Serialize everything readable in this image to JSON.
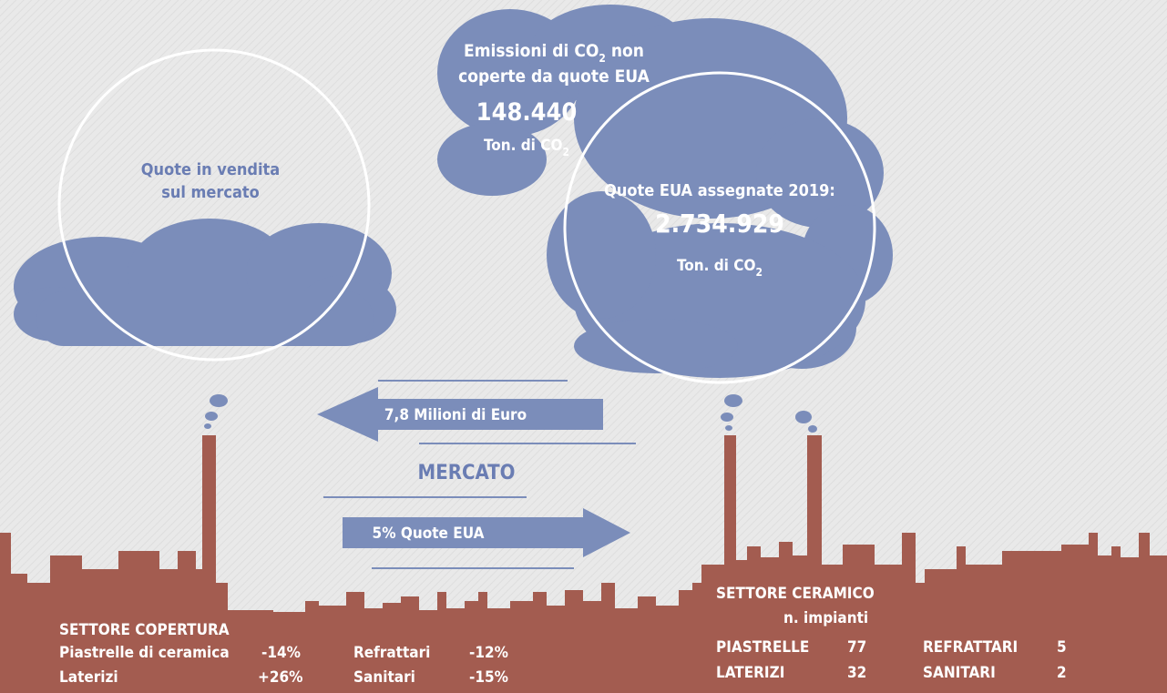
{
  "market_cloud": {
    "line1": "Quote in vendita",
    "line2": "sul mercato"
  },
  "emissions_cloud": {
    "line1": [
      "Emissioni di  CO",
      "2",
      " non"
    ],
    "line2": "coperte da quote EUA",
    "value": "148.440",
    "unit": [
      "Ton. di CO",
      "2"
    ]
  },
  "allowances_circle": {
    "line1": "Quote EUA  assegnate 2019:",
    "value": "2.734.929",
    "unit": [
      "Ton. di CO",
      "2"
    ]
  },
  "arrow_money": "7,8 Milioni di Euro",
  "market_label": "MERCATO",
  "arrow_quota": "5% Quote EUA",
  "coverage_sector": {
    "title": "SETTORE COPERTURA",
    "rows": [
      [
        "Piastrelle di ceramica",
        "-14%",
        "Refrattari",
        "-12%"
      ],
      [
        "Laterizi",
        "+26%",
        "Sanitari",
        "-15%"
      ]
    ]
  },
  "ceramic_sector": {
    "title": "SETTORE CERAMICO",
    "subtitle": "n. impianti",
    "rows": [
      [
        "PIASTRELLE",
        "77",
        "REFRATTARI",
        "5"
      ],
      [
        "LATERIZI",
        "32",
        "SANITARI",
        "2"
      ]
    ]
  }
}
